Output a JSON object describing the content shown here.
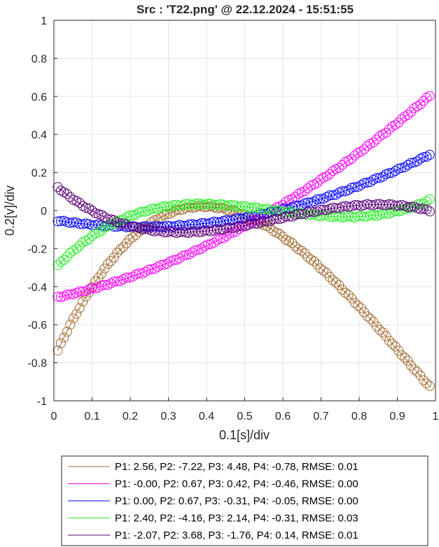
{
  "chart_data": {
    "type": "scatter",
    "title": "Src : 'T22.png' @ 22.12.2024 - 15:51:55",
    "xlabel": "0.1[s]/div",
    "ylabel": "0.2[v]/div",
    "xlim": [
      0,
      1
    ],
    "ylim": [
      -1,
      1
    ],
    "xticks": [
      "0",
      "0.1",
      "0.2",
      "0.3",
      "0.4",
      "0.5",
      "0.6",
      "0.7",
      "0.8",
      "0.9",
      "1"
    ],
    "yticks": [
      "1",
      "0.8",
      "0.6",
      "0.4",
      "0.2",
      "0",
      "-0.2",
      "-0.4",
      "-0.6",
      "-0.8",
      "-1"
    ],
    "grid": true,
    "legend_position": "bottom-outside",
    "x_range": [
      0.01,
      0.985
    ],
    "series": [
      {
        "name": "P1: 2.56, P2: -7.22, P3: 4.48, P4: -0.78, RMSE: 0.01",
        "color": "#a0692d",
        "coefficients": [
          2.56,
          -7.22,
          4.48,
          -0.78
        ],
        "values": [
          {
            "x": 0.01,
            "y": -0.69
          },
          {
            "x": 0.05,
            "y": -0.58
          },
          {
            "x": 0.1,
            "y": -0.43
          },
          {
            "x": 0.15,
            "y": -0.28
          },
          {
            "x": 0.2,
            "y": -0.14
          },
          {
            "x": 0.25,
            "y": -0.04
          },
          {
            "x": 0.3,
            "y": 0.02
          },
          {
            "x": 0.35,
            "y": 0.03
          },
          {
            "x": 0.4,
            "y": 0.04
          },
          {
            "x": 0.45,
            "y": 0.02
          },
          {
            "x": 0.5,
            "y": 0.0
          },
          {
            "x": 0.55,
            "y": -0.03
          },
          {
            "x": 0.6,
            "y": -0.1
          },
          {
            "x": 0.65,
            "y": -0.19
          },
          {
            "x": 0.7,
            "y": -0.29
          },
          {
            "x": 0.75,
            "y": -0.39
          },
          {
            "x": 0.8,
            "y": -0.51
          },
          {
            "x": 0.85,
            "y": -0.62
          },
          {
            "x": 0.9,
            "y": -0.73
          },
          {
            "x": 0.95,
            "y": -0.8
          },
          {
            "x": 0.98,
            "y": -0.86
          }
        ]
      },
      {
        "name": "P1: -0.00, P2: 0.67, P3: 0.42, P4: -0.46, RMSE: 0.00",
        "color": "#ff00ff",
        "coefficients": [
          0.0,
          0.67,
          0.42,
          -0.46
        ],
        "values": [
          {
            "x": 0.01,
            "y": -0.46
          },
          {
            "x": 0.1,
            "y": -0.41
          },
          {
            "x": 0.2,
            "y": -0.35
          },
          {
            "x": 0.3,
            "y": -0.27
          },
          {
            "x": 0.4,
            "y": -0.19
          },
          {
            "x": 0.5,
            "y": -0.07
          },
          {
            "x": 0.6,
            "y": 0.04
          },
          {
            "x": 0.7,
            "y": 0.17
          },
          {
            "x": 0.8,
            "y": 0.32
          },
          {
            "x": 0.9,
            "y": 0.46
          },
          {
            "x": 0.985,
            "y": 0.61
          }
        ]
      },
      {
        "name": "P1: 0.00, P2: 0.67, P3: -0.31, P4: -0.05, RMSE: 0.00",
        "color": "#0000ff",
        "coefficients": [
          0.0,
          0.67,
          -0.31,
          -0.05
        ],
        "values": [
          {
            "x": 0.01,
            "y": -0.05
          },
          {
            "x": 0.1,
            "y": -0.07
          },
          {
            "x": 0.2,
            "y": -0.09
          },
          {
            "x": 0.3,
            "y": -0.08
          },
          {
            "x": 0.4,
            "y": -0.06
          },
          {
            "x": 0.5,
            "y": -0.04
          },
          {
            "x": 0.6,
            "y": 0.01
          },
          {
            "x": 0.7,
            "y": 0.06
          },
          {
            "x": 0.8,
            "y": 0.15
          },
          {
            "x": 0.9,
            "y": 0.22
          },
          {
            "x": 0.985,
            "y": 0.3
          }
        ]
      },
      {
        "name": "P1: 2.40, P2: -4.16, P3: 2.14, P4: -0.31, RMSE: 0.03",
        "color": "#22ee22",
        "coefficients": [
          2.4,
          -4.16,
          2.14,
          -0.31
        ],
        "values": [
          {
            "x": 0.01,
            "y": -0.35
          },
          {
            "x": 0.05,
            "y": -0.25
          },
          {
            "x": 0.1,
            "y": -0.13
          },
          {
            "x": 0.15,
            "y": -0.02
          },
          {
            "x": 0.2,
            "y": 0.01
          },
          {
            "x": 0.3,
            "y": 0.03
          },
          {
            "x": 0.4,
            "y": 0.03
          },
          {
            "x": 0.5,
            "y": 0.01
          },
          {
            "x": 0.6,
            "y": 0.0
          },
          {
            "x": 0.7,
            "y": 0.0
          },
          {
            "x": 0.8,
            "y": 0.0
          },
          {
            "x": 0.9,
            "y": 0.0
          },
          {
            "x": 0.97,
            "y": -0.01
          }
        ]
      },
      {
        "name": "P1: -2.07, P2: 3.68, P3: -1.76, P4: 0.14, RMSE: 0.01",
        "color": "#5a0078",
        "coefficients": [
          -2.07,
          3.68,
          -1.76,
          0.14
        ],
        "values": [
          {
            "x": 0.01,
            "y": 0.13
          },
          {
            "x": 0.05,
            "y": 0.07
          },
          {
            "x": 0.1,
            "y": 0.0
          },
          {
            "x": 0.15,
            "y": -0.05
          },
          {
            "x": 0.2,
            "y": -0.08
          },
          {
            "x": 0.3,
            "y": -0.1
          },
          {
            "x": 0.4,
            "y": -0.09
          },
          {
            "x": 0.5,
            "y": -0.06
          },
          {
            "x": 0.6,
            "y": -0.02
          },
          {
            "x": 0.7,
            "y": 0.0
          },
          {
            "x": 0.8,
            "y": 0.01
          },
          {
            "x": 0.9,
            "y": 0.01
          },
          {
            "x": 0.97,
            "y": 0.04
          }
        ]
      }
    ]
  }
}
